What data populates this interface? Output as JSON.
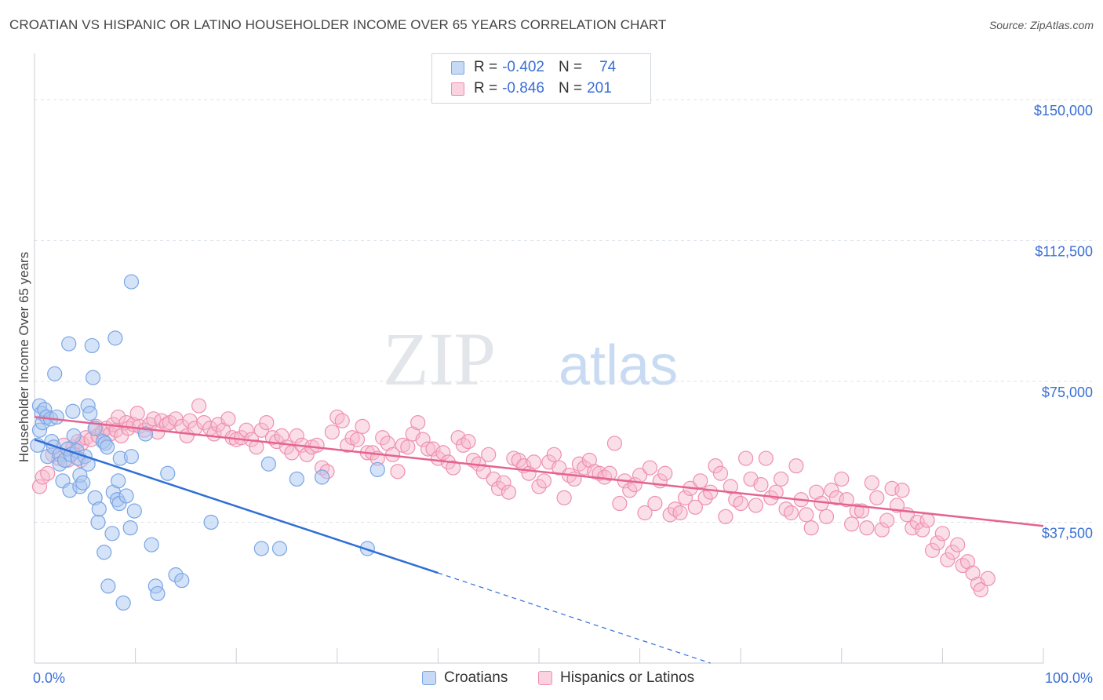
{
  "title": "CROATIAN VS HISPANIC OR LATINO HOUSEHOLDER INCOME OVER 65 YEARS CORRELATION CHART",
  "source": "Source: ZipAtlas.com",
  "watermark": {
    "zip": "ZIP",
    "atlas": "atlas"
  },
  "legend": {
    "rows": [
      {
        "r_label": "R =",
        "r_value": "-0.402",
        "n_label": "N =",
        "n_value": "74"
      },
      {
        "r_label": "R =",
        "r_value": "-0.846",
        "n_label": "N =",
        "n_value": "201"
      }
    ]
  },
  "bottom_legend": {
    "croatians": "Croatians",
    "hispanics": "Hispanics or Latinos"
  },
  "colors": {
    "blue_fill": "#a9c7f0",
    "blue_stroke": "#7aa5e6",
    "blue_line": "#2f6fd6",
    "pink_fill": "#f6b9cc",
    "pink_stroke": "#ee90b0",
    "pink_line": "#e5638f",
    "grid": "#dde3ea",
    "tick_label": "#3a6fd6"
  },
  "chart_data": {
    "type": "scatter",
    "title": "CROATIAN VS HISPANIC OR LATINO HOUSEHOLDER INCOME OVER 65 YEARS CORRELATION CHART",
    "xlabel": "",
    "ylabel": "Householder Income Over 65 years",
    "xlim": [
      0,
      100
    ],
    "ylim": [
      0,
      150000
    ],
    "x_tick_labels": [
      "0.0%",
      "100.0%"
    ],
    "y_ticks": [
      37500,
      75000,
      112500,
      150000
    ],
    "y_tick_labels": [
      "$37,500",
      "$75,000",
      "$112,500",
      "$150,000"
    ],
    "grid": true,
    "legend_position": "top-center",
    "series": [
      {
        "name": "Croatians",
        "r": -0.402,
        "n": 74,
        "trend": {
          "x0": 0,
          "y0": 59500,
          "x1": 40,
          "y1": 24000,
          "dash_to_x": 67,
          "dash_to_y": 0
        },
        "points": [
          [
            0.3,
            58000
          ],
          [
            0.5,
            68500
          ],
          [
            0.5,
            62000
          ],
          [
            0.7,
            66500
          ],
          [
            0.8,
            64000
          ],
          [
            1.0,
            67500
          ],
          [
            1.2,
            65500
          ],
          [
            1.3,
            55000
          ],
          [
            1.6,
            65000
          ],
          [
            1.7,
            59000
          ],
          [
            1.9,
            57500
          ],
          [
            2.0,
            77000
          ],
          [
            2.2,
            65500
          ],
          [
            2.5,
            55500
          ],
          [
            2.5,
            53000
          ],
          [
            2.8,
            48500
          ],
          [
            3.0,
            54000
          ],
          [
            3.3,
            57000
          ],
          [
            3.4,
            85000
          ],
          [
            3.5,
            46000
          ],
          [
            3.6,
            55500
          ],
          [
            3.8,
            67000
          ],
          [
            3.9,
            60500
          ],
          [
            4.2,
            56500
          ],
          [
            4.3,
            54500
          ],
          [
            4.5,
            47000
          ],
          [
            4.5,
            50000
          ],
          [
            4.8,
            48000
          ],
          [
            5.0,
            55000
          ],
          [
            5.3,
            68500
          ],
          [
            5.3,
            53000
          ],
          [
            5.5,
            66500
          ],
          [
            5.7,
            84500
          ],
          [
            5.8,
            76000
          ],
          [
            6.0,
            44000
          ],
          [
            6.0,
            62500
          ],
          [
            6.3,
            37500
          ],
          [
            6.4,
            41000
          ],
          [
            6.8,
            59000
          ],
          [
            6.9,
            29500
          ],
          [
            7.0,
            58500
          ],
          [
            7.2,
            57500
          ],
          [
            7.3,
            20500
          ],
          [
            7.7,
            34500
          ],
          [
            7.8,
            45500
          ],
          [
            8.0,
            86500
          ],
          [
            8.2,
            43500
          ],
          [
            8.3,
            48500
          ],
          [
            8.4,
            42500
          ],
          [
            8.5,
            54500
          ],
          [
            8.8,
            16000
          ],
          [
            9.1,
            44500
          ],
          [
            9.5,
            36000
          ],
          [
            9.6,
            55000
          ],
          [
            9.6,
            101500
          ],
          [
            9.9,
            40500
          ],
          [
            11.0,
            61000
          ],
          [
            11.6,
            31500
          ],
          [
            12.0,
            20500
          ],
          [
            12.2,
            18500
          ],
          [
            13.2,
            50500
          ],
          [
            14.0,
            23500
          ],
          [
            14.6,
            22000
          ],
          [
            17.5,
            37500
          ],
          [
            22.5,
            30500
          ],
          [
            23.2,
            53000
          ],
          [
            24.3,
            30500
          ],
          [
            26.0,
            49000
          ],
          [
            28.5,
            49500
          ],
          [
            33.0,
            30500
          ],
          [
            34.0,
            51500
          ]
        ]
      },
      {
        "name": "Hispanics or Latinos",
        "r": -0.846,
        "n": 201,
        "trend": {
          "x0": 0,
          "y0": 65500,
          "x1": 100,
          "y1": 36500
        },
        "points": [
          [
            0.5,
            47000
          ],
          [
            0.8,
            49500
          ],
          [
            1.3,
            50500
          ],
          [
            1.8,
            55500
          ],
          [
            2.4,
            54500
          ],
          [
            2.9,
            58000
          ],
          [
            3.3,
            54000
          ],
          [
            3.8,
            57500
          ],
          [
            4.3,
            59000
          ],
          [
            4.6,
            54000
          ],
          [
            4.7,
            58500
          ],
          [
            5.1,
            60000
          ],
          [
            5.6,
            59500
          ],
          [
            6.1,
            63000
          ],
          [
            6.3,
            60500
          ],
          [
            6.7,
            61500
          ],
          [
            7.1,
            62500
          ],
          [
            7.5,
            61000
          ],
          [
            7.8,
            63500
          ],
          [
            8.1,
            62000
          ],
          [
            8.3,
            65500
          ],
          [
            8.6,
            60500
          ],
          [
            9.1,
            64000
          ],
          [
            9.3,
            62500
          ],
          [
            9.8,
            63500
          ],
          [
            10.2,
            66500
          ],
          [
            10.4,
            63000
          ],
          [
            10.9,
            62000
          ],
          [
            11.4,
            63500
          ],
          [
            11.8,
            65000
          ],
          [
            12.2,
            61500
          ],
          [
            12.6,
            64500
          ],
          [
            13.1,
            63500
          ],
          [
            13.4,
            64000
          ],
          [
            14.0,
            65000
          ],
          [
            14.6,
            63000
          ],
          [
            15.1,
            60500
          ],
          [
            15.4,
            64500
          ],
          [
            15.9,
            62500
          ],
          [
            16.3,
            68500
          ],
          [
            16.8,
            64000
          ],
          [
            17.4,
            62500
          ],
          [
            17.8,
            61000
          ],
          [
            18.2,
            63500
          ],
          [
            18.7,
            62000
          ],
          [
            19.2,
            65000
          ],
          [
            19.6,
            60000
          ],
          [
            20.0,
            59500
          ],
          [
            20.5,
            60000
          ],
          [
            21.0,
            62000
          ],
          [
            21.5,
            59500
          ],
          [
            22.0,
            57500
          ],
          [
            22.5,
            62000
          ],
          [
            23.0,
            64000
          ],
          [
            23.6,
            60000
          ],
          [
            24.0,
            59000
          ],
          [
            24.5,
            60500
          ],
          [
            25.0,
            57500
          ],
          [
            25.5,
            56000
          ],
          [
            26.0,
            60500
          ],
          [
            26.5,
            58000
          ],
          [
            27.0,
            55500
          ],
          [
            27.5,
            57500
          ],
          [
            28.0,
            58000
          ],
          [
            28.5,
            52000
          ],
          [
            29.0,
            51000
          ],
          [
            29.5,
            61500
          ],
          [
            30.0,
            65500
          ],
          [
            30.5,
            64500
          ],
          [
            31.0,
            58000
          ],
          [
            31.5,
            60000
          ],
          [
            32.0,
            59500
          ],
          [
            32.5,
            63000
          ],
          [
            33.0,
            56000
          ],
          [
            33.5,
            56000
          ],
          [
            34.0,
            54500
          ],
          [
            34.5,
            60000
          ],
          [
            35.0,
            58500
          ],
          [
            35.5,
            55500
          ],
          [
            36.0,
            51000
          ],
          [
            36.5,
            58000
          ],
          [
            37.0,
            57500
          ],
          [
            37.5,
            61000
          ],
          [
            38.0,
            64000
          ],
          [
            38.5,
            59500
          ],
          [
            39.0,
            57000
          ],
          [
            39.5,
            57000
          ],
          [
            40.0,
            54500
          ],
          [
            40.5,
            56000
          ],
          [
            41.0,
            53500
          ],
          [
            41.5,
            52000
          ],
          [
            42.0,
            60000
          ],
          [
            42.5,
            58000
          ],
          [
            43.0,
            59000
          ],
          [
            43.5,
            54000
          ],
          [
            44.0,
            53000
          ],
          [
            44.5,
            51000
          ],
          [
            45.0,
            55500
          ],
          [
            45.5,
            49000
          ],
          [
            46.0,
            46500
          ],
          [
            46.5,
            48000
          ],
          [
            47.0,
            45500
          ],
          [
            47.5,
            54500
          ],
          [
            48.0,
            54000
          ],
          [
            48.5,
            52500
          ],
          [
            49.0,
            50500
          ],
          [
            49.5,
            53500
          ],
          [
            50.0,
            47000
          ],
          [
            50.5,
            48500
          ],
          [
            51.0,
            53500
          ],
          [
            51.5,
            55500
          ],
          [
            52.0,
            52000
          ],
          [
            52.5,
            44000
          ],
          [
            53.0,
            50000
          ],
          [
            53.5,
            49000
          ],
          [
            54.0,
            53000
          ],
          [
            54.5,
            52000
          ],
          [
            55.0,
            54000
          ],
          [
            55.5,
            51000
          ],
          [
            56.0,
            50500
          ],
          [
            56.5,
            49500
          ],
          [
            57.0,
            50500
          ],
          [
            57.5,
            58500
          ],
          [
            58.0,
            42500
          ],
          [
            58.5,
            48500
          ],
          [
            59.0,
            46000
          ],
          [
            59.5,
            47500
          ],
          [
            60.0,
            50000
          ],
          [
            60.5,
            40000
          ],
          [
            61.0,
            52000
          ],
          [
            61.5,
            42500
          ],
          [
            62.0,
            48500
          ],
          [
            62.5,
            50500
          ],
          [
            63.0,
            39500
          ],
          [
            63.5,
            41000
          ],
          [
            64.0,
            40000
          ],
          [
            64.5,
            44000
          ],
          [
            65.0,
            46500
          ],
          [
            65.5,
            41500
          ],
          [
            66.0,
            48500
          ],
          [
            66.5,
            44000
          ],
          [
            67.0,
            45500
          ],
          [
            67.5,
            52500
          ],
          [
            68.0,
            50500
          ],
          [
            68.5,
            39000
          ],
          [
            69.0,
            47000
          ],
          [
            69.5,
            43500
          ],
          [
            70.0,
            42500
          ],
          [
            70.5,
            54500
          ],
          [
            71.0,
            49000
          ],
          [
            71.5,
            42000
          ],
          [
            72.0,
            47500
          ],
          [
            72.5,
            54500
          ],
          [
            73.0,
            44000
          ],
          [
            73.5,
            45500
          ],
          [
            74.0,
            49000
          ],
          [
            74.5,
            41000
          ],
          [
            75.0,
            40000
          ],
          [
            75.5,
            52500
          ],
          [
            76.0,
            43500
          ],
          [
            76.5,
            39500
          ],
          [
            77.0,
            36000
          ],
          [
            77.5,
            45500
          ],
          [
            78.0,
            42500
          ],
          [
            78.5,
            39000
          ],
          [
            79.0,
            46000
          ],
          [
            79.5,
            44000
          ],
          [
            80.0,
            49000
          ],
          [
            80.5,
            43500
          ],
          [
            81.0,
            37000
          ],
          [
            81.5,
            40500
          ],
          [
            82.0,
            40500
          ],
          [
            82.5,
            36000
          ],
          [
            83.0,
            48000
          ],
          [
            83.5,
            44000
          ],
          [
            84.0,
            35500
          ],
          [
            84.5,
            38000
          ],
          [
            85.0,
            46500
          ],
          [
            85.5,
            42000
          ],
          [
            86.0,
            46000
          ],
          [
            86.5,
            39500
          ],
          [
            87.0,
            36000
          ],
          [
            87.5,
            37500
          ],
          [
            88.0,
            35500
          ],
          [
            88.5,
            38000
          ],
          [
            89.0,
            30000
          ],
          [
            89.5,
            32000
          ],
          [
            90.0,
            34500
          ],
          [
            90.5,
            27500
          ],
          [
            91.0,
            29500
          ],
          [
            91.5,
            31500
          ],
          [
            92.0,
            26000
          ],
          [
            92.5,
            27000
          ],
          [
            93.0,
            24000
          ],
          [
            93.5,
            21000
          ],
          [
            93.8,
            19500
          ],
          [
            94.5,
            22500
          ]
        ]
      }
    ]
  }
}
